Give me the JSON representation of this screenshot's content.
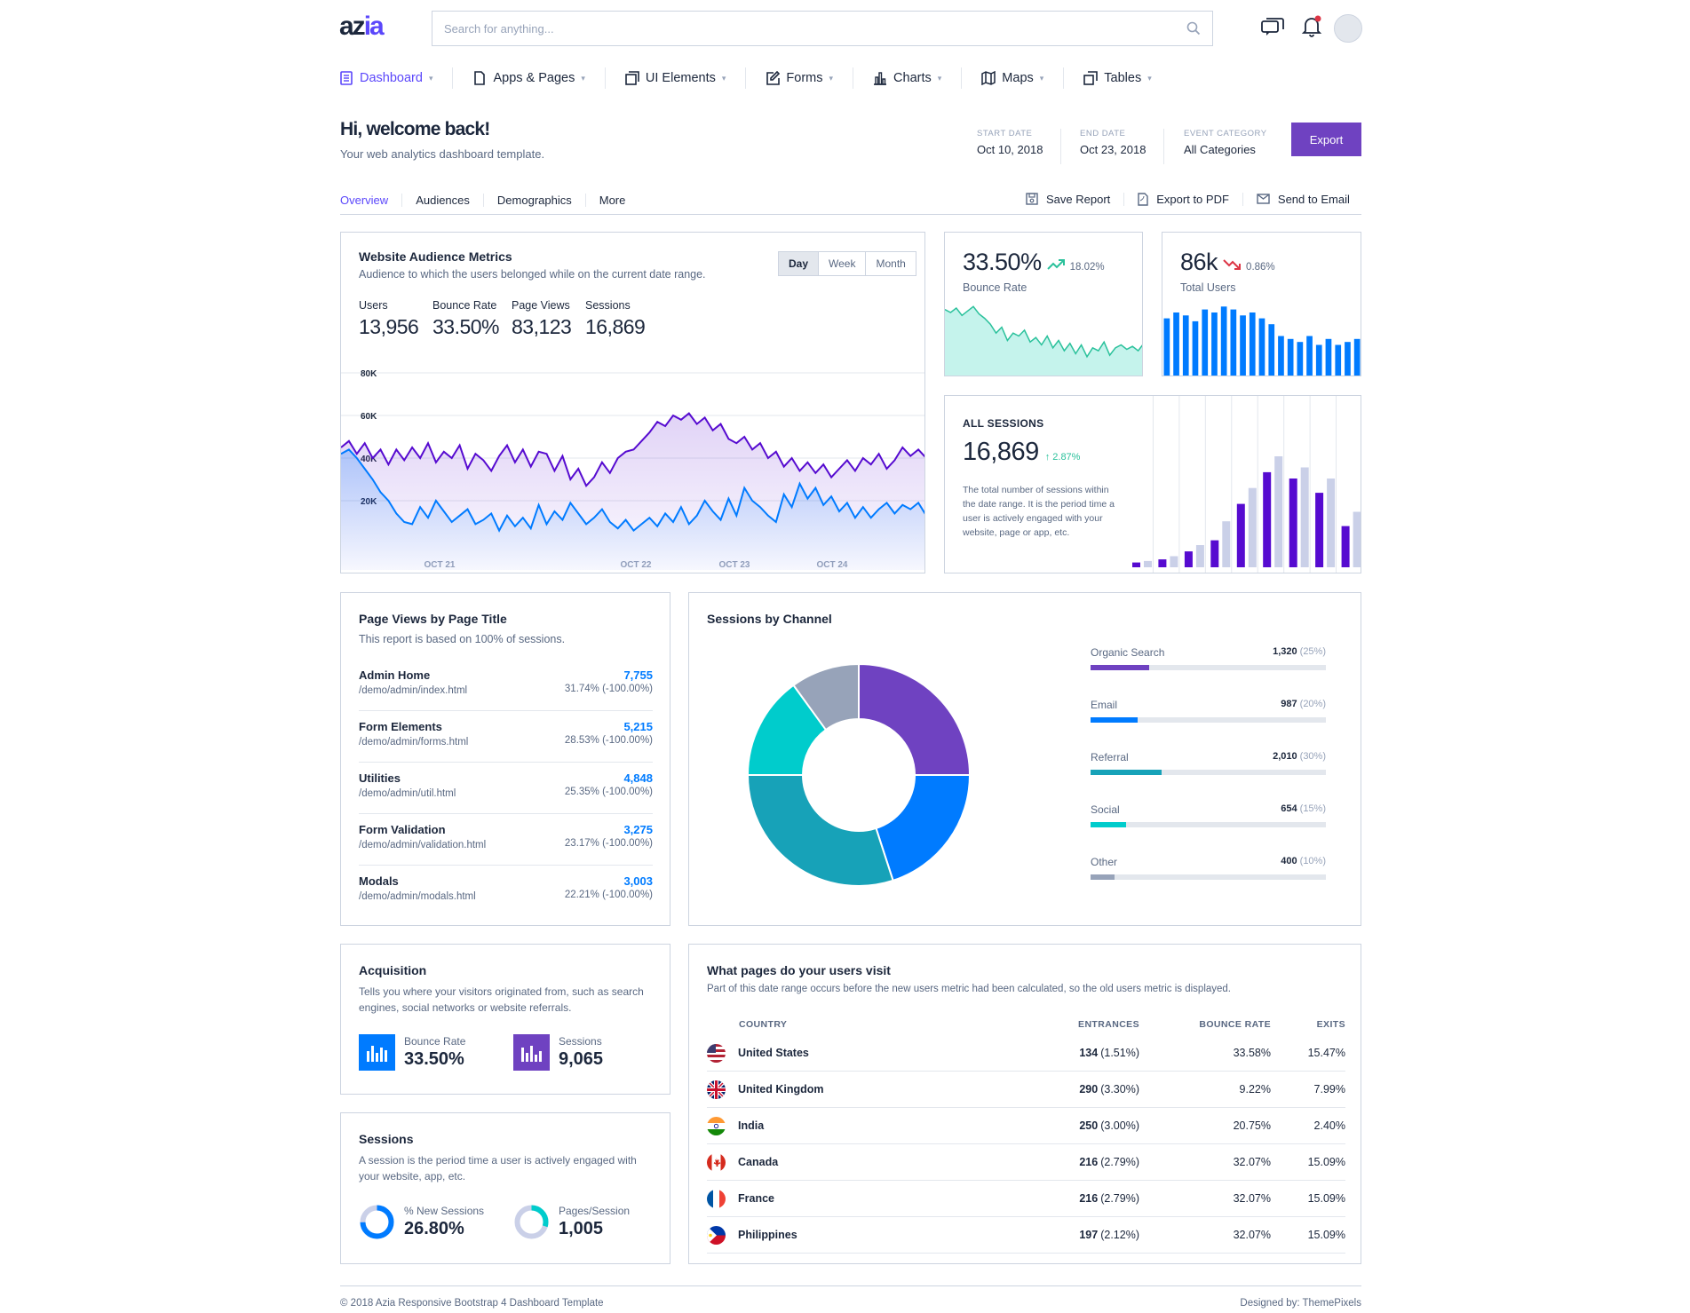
{
  "header": {
    "logo_main": "az",
    "logo_accent": "ia",
    "search_placeholder": "Search for anything...",
    "icons": [
      "search-icon",
      "chat-icon",
      "bell-icon",
      "avatar"
    ]
  },
  "nav": [
    {
      "label": "Dashboard",
      "icon": "dashboard-icon",
      "active": true
    },
    {
      "label": "Apps & Pages",
      "icon": "file-icon"
    },
    {
      "label": "UI Elements",
      "icon": "layers-icon"
    },
    {
      "label": "Forms",
      "icon": "edit-icon"
    },
    {
      "label": "Charts",
      "icon": "bar-chart-icon"
    },
    {
      "label": "Maps",
      "icon": "map-icon"
    },
    {
      "label": "Tables",
      "icon": "copy-icon"
    }
  ],
  "welcome": {
    "title": "Hi, welcome back!",
    "subtitle": "Your web analytics dashboard template.",
    "start_label": "START DATE",
    "start_value": "Oct 10, 2018",
    "end_label": "END DATE",
    "end_value": "Oct 23, 2018",
    "cat_label": "EVENT CATEGORY",
    "cat_value": "All Categories",
    "export": "Export"
  },
  "tabs": [
    "Overview",
    "Audiences",
    "Demographics",
    "More"
  ],
  "actions": {
    "save": "Save Report",
    "pdf": "Export to PDF",
    "email": "Send to Email"
  },
  "audience": {
    "title": "Website Audience Metrics",
    "subtitle": "Audience to which the users belonged while on the current date range.",
    "ranges": [
      "Day",
      "Week",
      "Month"
    ],
    "metrics": [
      {
        "label": "Users",
        "value": "13,956"
      },
      {
        "label": "Bounce Rate",
        "value": "33.50%"
      },
      {
        "label": "Page Views",
        "value": "83,123"
      },
      {
        "label": "Sessions",
        "value": "16,869"
      }
    ]
  },
  "bounce_card": {
    "value": "33.50%",
    "change": "18.02%",
    "label": "Bounce Rate",
    "color": "#2ac19b"
  },
  "users_card": {
    "value": "86k",
    "change": "0.86%",
    "label": "Total Users",
    "color": "#dc3545"
  },
  "sessions_card": {
    "title": "ALL SESSIONS",
    "value": "16,869",
    "change": "2.87%",
    "desc": "The total number of sessions within the date range. It is the period time a user is actively engaged with your website, page or app, etc."
  },
  "pageviews": {
    "title": "Page Views by Page Title",
    "subtitle": "This report is based on 100% of sessions.",
    "rows": [
      {
        "name": "Admin Home",
        "path": "/demo/admin/index.html",
        "count": "7,755",
        "pct": "31.74% (-100.00%)"
      },
      {
        "name": "Form Elements",
        "path": "/demo/admin/forms.html",
        "count": "5,215",
        "pct": "28.53% (-100.00%)"
      },
      {
        "name": "Utilities",
        "path": "/demo/admin/util.html",
        "count": "4,848",
        "pct": "25.35% (-100.00%)"
      },
      {
        "name": "Form Validation",
        "path": "/demo/admin/validation.html",
        "count": "3,275",
        "pct": "23.17% (-100.00%)"
      },
      {
        "name": "Modals",
        "path": "/demo/admin/modals.html",
        "count": "3,003",
        "pct": "22.21% (-100.00%)"
      }
    ]
  },
  "channels": {
    "title": "Sessions by Channel",
    "items": [
      {
        "name": "Organic Search",
        "value": "1,320",
        "pct": "(25%)",
        "fill": 25,
        "color": "#6f42c1"
      },
      {
        "name": "Email",
        "value": "987",
        "pct": "(20%)",
        "fill": 20,
        "color": "#007bff"
      },
      {
        "name": "Referral",
        "value": "2,010",
        "pct": "(30%)",
        "fill": 30,
        "color": "#17a2b8"
      },
      {
        "name": "Social",
        "value": "654",
        "pct": "(15%)",
        "fill": 15,
        "color": "#00cccc"
      },
      {
        "name": "Other",
        "value": "400",
        "pct": "(10%)",
        "fill": 10,
        "color": "#97a3b9"
      }
    ]
  },
  "acquisition": {
    "title": "Acquisition",
    "desc": "Tells you where your visitors originated from, such as search engines, social networks or website referrals.",
    "m1_label": "Bounce Rate",
    "m1_value": "33.50%",
    "m2_label": "Sessions",
    "m2_value": "9,065"
  },
  "sessions_info": {
    "title": "Sessions",
    "desc": "A session is the period time a user is actively engaged with your website, app, etc.",
    "m1_label": "% New Sessions",
    "m1_value": "26.80%",
    "m2_label": "Pages/Session",
    "m2_value": "1,005"
  },
  "visits": {
    "title": "What pages do your users visit",
    "subtitle": "Part of this date range occurs before the new users metric had been calculated, so the old users metric is displayed.",
    "headers": [
      "COUNTRY",
      "ENTRANCES",
      "BOUNCE RATE",
      "EXITS"
    ],
    "rows": [
      {
        "country": "United States",
        "flag": "us",
        "ent": "134",
        "entpct": "(1.51%)",
        "bounce": "33.58%",
        "exits": "15.47%"
      },
      {
        "country": "United Kingdom",
        "flag": "uk",
        "ent": "290",
        "entpct": "(3.30%)",
        "bounce": "9.22%",
        "exits": "7.99%"
      },
      {
        "country": "India",
        "flag": "in",
        "ent": "250",
        "entpct": "(3.00%)",
        "bounce": "20.75%",
        "exits": "2.40%"
      },
      {
        "country": "Canada",
        "flag": "ca",
        "ent": "216",
        "entpct": "(2.79%)",
        "bounce": "32.07%",
        "exits": "15.09%"
      },
      {
        "country": "France",
        "flag": "fr",
        "ent": "216",
        "entpct": "(2.79%)",
        "bounce": "32.07%",
        "exits": "15.09%"
      },
      {
        "country": "Philippines",
        "flag": "ph",
        "ent": "197",
        "entpct": "(2.12%)",
        "bounce": "32.07%",
        "exits": "15.09%"
      }
    ]
  },
  "footer": {
    "left": "© 2018 Azia Responsive Bootstrap 4 Dashboard Template",
    "right": "Designed by: ThemePixels"
  },
  "chart_data": [
    {
      "type": "line",
      "title": "Website Audience Metrics",
      "y_ticks": [
        "80K",
        "60K",
        "40K",
        "20K"
      ],
      "x_ticks": [
        "OCT 21",
        "OCT 22",
        "OCT 23",
        "OCT 24"
      ],
      "ylim": [
        0,
        80000
      ],
      "series": [
        {
          "color": "#560bd0",
          "values": [
            45,
            48,
            42,
            47,
            40,
            44,
            37,
            44,
            39,
            45,
            40,
            47,
            38,
            43,
            40,
            46,
            35,
            42,
            39,
            34,
            41,
            46,
            38,
            44,
            36,
            43,
            42,
            34,
            41,
            30,
            35,
            27,
            31,
            38,
            33,
            40,
            43,
            44,
            48,
            52,
            57,
            55,
            60,
            58,
            61,
            56,
            59,
            53,
            56,
            49,
            47,
            50,
            44,
            47,
            40,
            43,
            36,
            40,
            34,
            38,
            33,
            37,
            31,
            35,
            39,
            34,
            40,
            37,
            42,
            35,
            39,
            45,
            41,
            44,
            40
          ]
        },
        {
          "color": "#007bff",
          "values": [
            42,
            44,
            40,
            35,
            30,
            24,
            20,
            14,
            10,
            9,
            17,
            12,
            20,
            15,
            10,
            13,
            16,
            9,
            11,
            14,
            6,
            13,
            8,
            12,
            7,
            18,
            9,
            15,
            11,
            19,
            14,
            9,
            12,
            16,
            10,
            7,
            11,
            6,
            9,
            12,
            8,
            14,
            10,
            17,
            9,
            13,
            20,
            15,
            11,
            21,
            13,
            26,
            20,
            17,
            13,
            10,
            23,
            17,
            28,
            21,
            26,
            18,
            22,
            15,
            19,
            12,
            17,
            12,
            16,
            19,
            14,
            18,
            16,
            19,
            13
          ]
        }
      ]
    },
    {
      "type": "area",
      "title": "Bounce Rate",
      "values": [
        46,
        44,
        47,
        42,
        45,
        48,
        43,
        40,
        36,
        30,
        34,
        25,
        30,
        28,
        32,
        24,
        27,
        22,
        28,
        20,
        25,
        18,
        23,
        16,
        22,
        14,
        20,
        18,
        24,
        15,
        20,
        22,
        19,
        21,
        18,
        23
      ]
    },
    {
      "type": "bar",
      "title": "Total Users",
      "values": [
        40,
        44,
        42,
        38,
        46,
        44,
        48,
        46,
        42,
        44,
        40,
        36,
        28,
        26,
        24,
        28,
        22,
        26,
        22,
        24,
        26
      ]
    },
    {
      "type": "bar",
      "title": "ALL SESSIONS",
      "series": [
        {
          "name": "",
          "color": "#560bd0",
          "values": [
            3,
            5,
            10,
            17,
            40,
            60,
            56,
            47,
            26
          ]
        },
        {
          "name": "",
          "color": "#cad0e8",
          "values": [
            4,
            7,
            14,
            29,
            50,
            70,
            63,
            56,
            35
          ]
        }
      ]
    },
    {
      "type": "pie",
      "title": "Sessions by Channel",
      "categories": [
        "Organic Search",
        "Email",
        "Referral",
        "Social",
        "Other"
      ],
      "values": [
        25,
        20,
        30,
        15,
        10
      ]
    }
  ]
}
